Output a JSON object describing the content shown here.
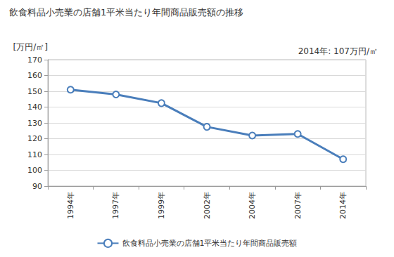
{
  "chart_data": {
    "type": "line",
    "title": "飲食料品小売業の店舗1平米当たり年間商品販売額の推移",
    "y_label": "[万円/㎡]",
    "annotation": "2014年: 107万円/㎡",
    "categories": [
      "1994年",
      "1997年",
      "1999年",
      "2002年",
      "2004年",
      "2007年",
      "2014年"
    ],
    "series": [
      {
        "name": "飲食料品小売業の店舗1平米当たり年間商品販売額",
        "color": "#4a7ebb",
        "marker": "circle",
        "values": [
          151,
          148,
          142.5,
          127.5,
          122,
          123,
          107
        ]
      }
    ],
    "ylim": [
      90,
      170
    ],
    "yticks": [
      90,
      100,
      110,
      120,
      130,
      140,
      150,
      160,
      170
    ],
    "grid": true,
    "legend": "bottom"
  }
}
